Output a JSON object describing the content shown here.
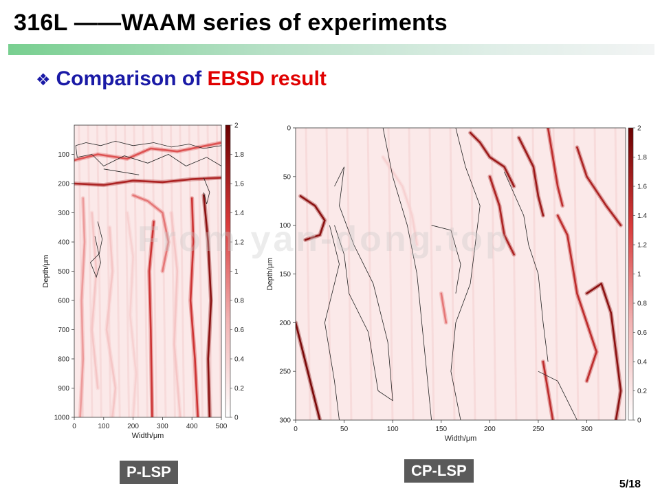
{
  "slide": {
    "title": "316L ——WAAM series of experiments",
    "subtitle_prefix": "Comparison of ",
    "subtitle_highlight": "EBSD result",
    "page_number": "5/18",
    "watermark": "From yan-dong.top",
    "title_bar_colors": [
      "#78cf90",
      "#f2f4f4"
    ],
    "accent_blue": "#1a1aa6",
    "accent_red": "#e00000"
  },
  "chart_data": [
    {
      "type": "heatmap",
      "caption": "P-LSP",
      "xlabel": "Width/μm",
      "ylabel": "Depth/μm",
      "xlim": [
        0,
        500
      ],
      "ylim": [
        1000,
        0
      ],
      "x_ticks": [
        0,
        100,
        200,
        300,
        400,
        500
      ],
      "y_ticks": [
        100,
        200,
        300,
        400,
        500,
        600,
        700,
        800,
        900,
        1000
      ],
      "colorbar": {
        "min": 0,
        "max": 2,
        "ticks": [
          0,
          0.2,
          0.4,
          0.6,
          0.8,
          1,
          1.2,
          1.4,
          1.6,
          1.8,
          2
        ],
        "colors": [
          "#ffffff",
          "#f2b3b3",
          "#d83a3a",
          "#6a0000"
        ]
      },
      "features": [
        {
          "points": [
            [
              0,
              200
            ],
            [
              100,
              205
            ],
            [
              200,
              190
            ],
            [
              300,
              195
            ],
            [
              400,
              185
            ],
            [
              500,
              180
            ]
          ],
          "value": 1.6
        },
        {
          "points": [
            [
              0,
              120
            ],
            [
              80,
              100
            ],
            [
              180,
              115
            ],
            [
              260,
              80
            ],
            [
              350,
              90
            ],
            [
              500,
              60
            ]
          ],
          "value": 1.2
        },
        {
          "points": [
            [
              200,
              240
            ],
            [
              250,
              260
            ],
            [
              300,
              300
            ],
            [
              320,
              400
            ],
            [
              300,
              500
            ]
          ],
          "value": 1.0
        },
        {
          "points": [
            [
              30,
              250
            ],
            [
              35,
              400
            ],
            [
              25,
              600
            ],
            [
              30,
              800
            ],
            [
              20,
              1000
            ]
          ],
          "value": 0.8
        },
        {
          "points": [
            [
              120,
              350
            ],
            [
              130,
              500
            ],
            [
              110,
              700
            ],
            [
              140,
              900
            ],
            [
              130,
              1000
            ]
          ],
          "value": 0.5
        },
        {
          "points": [
            [
              180,
              300
            ],
            [
              200,
              450
            ],
            [
              190,
              650
            ],
            [
              210,
              850
            ],
            [
              200,
              1000
            ]
          ],
          "value": 0.4
        },
        {
          "points": [
            [
              270,
              330
            ],
            [
              255,
              500
            ],
            [
              260,
              700
            ],
            [
              265,
              1000
            ]
          ],
          "value": 1.4
        },
        {
          "points": [
            [
              400,
              250
            ],
            [
              405,
              400
            ],
            [
              395,
              600
            ],
            [
              410,
              800
            ],
            [
              420,
              1000
            ]
          ],
          "value": 1.4
        },
        {
          "points": [
            [
              440,
              240
            ],
            [
              455,
              400
            ],
            [
              465,
              600
            ],
            [
              455,
              800
            ],
            [
              460,
              1000
            ]
          ],
          "value": 1.8
        },
        {
          "points": [
            [
              330,
              300
            ],
            [
              350,
              500
            ],
            [
              340,
              750
            ],
            [
              360,
              1000
            ]
          ],
          "value": 0.5
        },
        {
          "points": [
            [
              60,
              300
            ],
            [
              75,
              500
            ],
            [
              60,
              700
            ],
            [
              80,
              900
            ]
          ],
          "value": 0.5
        }
      ],
      "boundaries": [
        [
          [
            5,
            70
          ],
          [
            40,
            60
          ],
          [
            90,
            70
          ],
          [
            140,
            55
          ],
          [
            200,
            70
          ],
          [
            270,
            60
          ],
          [
            330,
            75
          ],
          [
            390,
            65
          ],
          [
            440,
            80
          ],
          [
            500,
            70
          ]
        ],
        [
          [
            5,
            70
          ],
          [
            10,
            110
          ],
          [
            60,
            100
          ],
          [
            100,
            140
          ],
          [
            170,
            105
          ],
          [
            250,
            130
          ],
          [
            320,
            100
          ],
          [
            380,
            140
          ],
          [
            450,
            110
          ],
          [
            500,
            140
          ]
        ],
        [
          [
            80,
            330
          ],
          [
            95,
            390
          ],
          [
            85,
            440
          ],
          [
            55,
            470
          ],
          [
            75,
            520
          ],
          [
            90,
            470
          ],
          [
            70,
            380
          ]
        ],
        [
          [
            440,
            180
          ],
          [
            460,
            230
          ],
          [
            450,
            270
          ],
          [
            440,
            230
          ]
        ],
        [
          [
            100,
            150
          ],
          [
            220,
            170
          ]
        ]
      ]
    },
    {
      "type": "heatmap",
      "caption": "CP-LSP",
      "xlabel": "Width/μm",
      "ylabel": "Depth/μm",
      "xlim": [
        0,
        340
      ],
      "ylim": [
        300,
        0
      ],
      "x_ticks": [
        0,
        50,
        100,
        150,
        200,
        250,
        300
      ],
      "y_ticks": [
        0,
        50,
        100,
        150,
        200,
        250,
        300
      ],
      "colorbar": {
        "min": 0,
        "max": 2,
        "ticks": [
          0,
          0.2,
          0.4,
          0.6,
          0.8,
          1,
          1.2,
          1.4,
          1.6,
          1.8,
          2
        ],
        "colors": [
          "#ffffff",
          "#f2b3b3",
          "#d83a3a",
          "#6a0000"
        ]
      },
      "features": [
        {
          "points": [
            [
              5,
              70
            ],
            [
              20,
              80
            ],
            [
              30,
              95
            ],
            [
              25,
              110
            ],
            [
              10,
              115
            ]
          ],
          "value": 1.8
        },
        {
          "points": [
            [
              0,
              200
            ],
            [
              10,
              240
            ],
            [
              20,
              280
            ],
            [
              25,
              300
            ]
          ],
          "value": 1.9
        },
        {
          "points": [
            [
              180,
              5
            ],
            [
              190,
              15
            ],
            [
              200,
              30
            ],
            [
              215,
              40
            ],
            [
              225,
              60
            ]
          ],
          "value": 1.7
        },
        {
          "points": [
            [
              200,
              50
            ],
            [
              210,
              80
            ],
            [
              215,
              110
            ],
            [
              225,
              130
            ]
          ],
          "value": 1.6
        },
        {
          "points": [
            [
              230,
              10
            ],
            [
              245,
              40
            ],
            [
              250,
              70
            ],
            [
              255,
              90
            ]
          ],
          "value": 1.7
        },
        {
          "points": [
            [
              260,
              0
            ],
            [
              265,
              30
            ],
            [
              270,
              60
            ],
            [
              275,
              80
            ]
          ],
          "value": 1.5
        },
        {
          "points": [
            [
              290,
              20
            ],
            [
              300,
              50
            ],
            [
              320,
              80
            ],
            [
              335,
              100
            ]
          ],
          "value": 1.6
        },
        {
          "points": [
            [
              270,
              90
            ],
            [
              280,
              110
            ],
            [
              285,
              140
            ],
            [
              290,
              170
            ],
            [
              300,
              200
            ],
            [
              310,
              230
            ],
            [
              300,
              260
            ]
          ],
          "value": 1.5
        },
        {
          "points": [
            [
              300,
              170
            ],
            [
              315,
              160
            ],
            [
              325,
              190
            ],
            [
              330,
              230
            ],
            [
              335,
              270
            ],
            [
              330,
              300
            ]
          ],
          "value": 1.8
        },
        {
          "points": [
            [
              255,
              240
            ],
            [
              260,
              270
            ],
            [
              265,
              300
            ]
          ],
          "value": 1.5
        },
        {
          "points": [
            [
              150,
              170
            ],
            [
              155,
              200
            ]
          ],
          "value": 1.0
        },
        {
          "points": [
            [
              90,
              30
            ],
            [
              110,
              60
            ],
            [
              120,
              90
            ],
            [
              125,
              120
            ]
          ],
          "value": 0.4
        }
      ],
      "boundaries": [
        [
          [
            40,
            60
          ],
          [
            50,
            40
          ],
          [
            45,
            80
          ],
          [
            60,
            120
          ],
          [
            80,
            160
          ],
          [
            95,
            220
          ],
          [
            100,
            280
          ],
          [
            85,
            270
          ],
          [
            75,
            210
          ],
          [
            55,
            170
          ],
          [
            50,
            130
          ],
          [
            40,
            100
          ]
        ],
        [
          [
            35,
            100
          ],
          [
            45,
            140
          ],
          [
            30,
            200
          ],
          [
            40,
            260
          ],
          [
            45,
            300
          ]
        ],
        [
          [
            90,
            0
          ],
          [
            100,
            50
          ],
          [
            115,
            100
          ],
          [
            125,
            150
          ],
          [
            130,
            200
          ],
          [
            135,
            250
          ],
          [
            140,
            300
          ]
        ],
        [
          [
            165,
            0
          ],
          [
            175,
            40
          ],
          [
            190,
            80
          ],
          [
            185,
            120
          ],
          [
            180,
            160
          ],
          [
            165,
            200
          ],
          [
            160,
            250
          ],
          [
            170,
            300
          ]
        ],
        [
          [
            140,
            100
          ],
          [
            160,
            105
          ],
          [
            170,
            140
          ],
          [
            165,
            170
          ]
        ],
        [
          [
            215,
            45
          ],
          [
            235,
            90
          ],
          [
            240,
            120
          ],
          [
            250,
            150
          ],
          [
            255,
            200
          ],
          [
            260,
            240
          ]
        ],
        [
          [
            250,
            250
          ],
          [
            270,
            260
          ],
          [
            280,
            280
          ],
          [
            290,
            300
          ]
        ]
      ]
    }
  ]
}
